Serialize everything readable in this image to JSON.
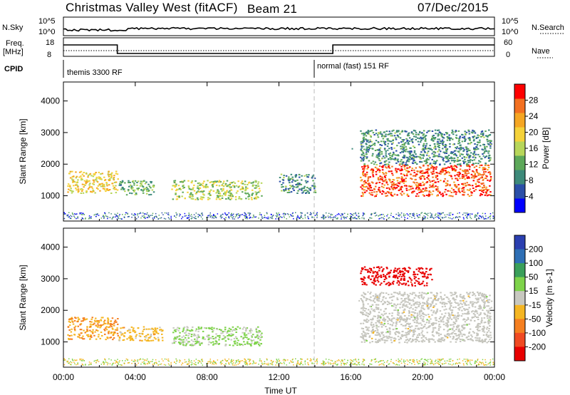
{
  "header": {
    "station": "Christmas Valley West (fitACF)",
    "beam": "Beam 21",
    "date": "07/Dec/2015"
  },
  "strip": {
    "nsky_label": "N.Sky",
    "nsearch_label": "N.Search",
    "nsky_ticks": [
      "10^5",
      "10^0"
    ],
    "nsearch_ticks": [
      "10^5",
      "10^0"
    ],
    "freq_label_1": "Freq.",
    "freq_label_2": "[MHz]",
    "freq_ticks": [
      "18",
      "8"
    ],
    "nave_label": "Nave",
    "nave_ticks": [
      "60",
      "0"
    ],
    "cpid_label": "CPID",
    "cpid_1": "themis 3300 RF",
    "cpid_2": "normal (fast) 151 RF"
  },
  "colors": {
    "power_scale": [
      "#0000ff",
      "#2b4fa8",
      "#3d8a7a",
      "#5da85a",
      "#b7d65a",
      "#f5d23a",
      "#f5a623",
      "#f37021",
      "#ff0000"
    ],
    "velocity_scale": [
      "#2b3fb0",
      "#2e6fb5",
      "#3a9f5a",
      "#7ed34a",
      "#c8c8c0",
      "#f5b623",
      "#f57f20",
      "#f04a22",
      "#e80000"
    ],
    "scatter_gray": "#c5c5bd"
  },
  "chart_data": [
    {
      "type": "heatmap",
      "title": "Power",
      "xlabel": "Time UT",
      "ylabel": "Slant Range [km]",
      "xlim": [
        "00:00",
        "24:00"
      ],
      "ylim": [
        200,
        4600
      ],
      "x_ticks": [
        "00:00",
        "04:00",
        "08:00",
        "12:00",
        "16:00",
        "20:00",
        "00:00"
      ],
      "y_ticks": [
        1000,
        2000,
        3000,
        4000
      ],
      "colorbar_label": "Power [dB]",
      "colorbar_ticks": [
        4,
        8,
        12,
        16,
        20,
        24,
        28
      ],
      "colorbar_range": [
        0,
        32
      ],
      "features": [
        {
          "t0": 0.2,
          "t1": 3.0,
          "r0": 1100,
          "r1": 1800,
          "value": 20
        },
        {
          "t0": 3.0,
          "t1": 5.0,
          "r0": 1050,
          "r1": 1500,
          "value": 12
        },
        {
          "t0": 6.0,
          "t1": 11.0,
          "r0": 900,
          "r1": 1500,
          "value": 16
        },
        {
          "t0": 12.0,
          "t1": 14.0,
          "r0": 1100,
          "r1": 1700,
          "value": 10
        },
        {
          "t0": 16.5,
          "t1": 23.8,
          "r0": 1000,
          "r1": 2000,
          "value": 28
        },
        {
          "t0": 16.5,
          "t1": 23.8,
          "r0": 2000,
          "r1": 3100,
          "value": 10
        }
      ]
    },
    {
      "type": "heatmap",
      "title": "Velocity",
      "xlabel": "Time UT",
      "ylabel": "Slant Range [km]",
      "xlim": [
        "00:00",
        "24:00"
      ],
      "ylim": [
        200,
        4600
      ],
      "x_ticks": [
        "00:00",
        "04:00",
        "08:00",
        "12:00",
        "16:00",
        "20:00",
        "00:00"
      ],
      "y_ticks": [
        1000,
        2000,
        3000,
        4000
      ],
      "colorbar_label": "Velocity [m s-1]",
      "colorbar_ticks": [
        200,
        100,
        50,
        15,
        -15,
        -50,
        -100,
        -200
      ],
      "features": [
        {
          "t0": 0.2,
          "t1": 3.0,
          "r0": 1100,
          "r1": 1800,
          "value": -50
        },
        {
          "t0": 3.0,
          "t1": 5.5,
          "r0": 1050,
          "r1": 1500,
          "value": -30
        },
        {
          "t0": 6.0,
          "t1": 11.0,
          "r0": 900,
          "r1": 1500,
          "value": 20
        },
        {
          "t0": 16.5,
          "t1": 23.8,
          "r0": 1000,
          "r1": 2600,
          "value": 0
        },
        {
          "t0": 16.5,
          "t1": 20.5,
          "r0": 2800,
          "r1": 3400,
          "value": -220
        }
      ]
    }
  ]
}
